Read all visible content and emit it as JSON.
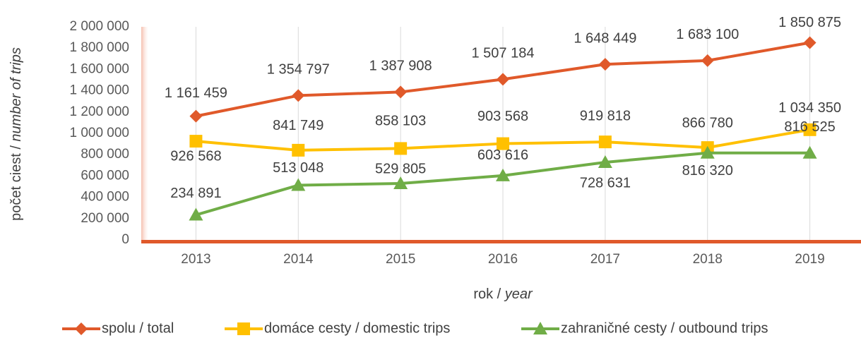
{
  "chart_data": {
    "type": "line",
    "ylabel": [
      "počet ciest / ",
      "number of trips"
    ],
    "xlabel": [
      "rok / ",
      "year"
    ],
    "categories": [
      "2013",
      "2014",
      "2015",
      "2016",
      "2017",
      "2018",
      "2019"
    ],
    "series": [
      {
        "name": "spolu / total",
        "color": "#E0592A",
        "marker": "diamond",
        "values": [
          1161459,
          1354797,
          1387908,
          1507184,
          1648449,
          1683100,
          1850875
        ],
        "value_labels": [
          "1 161 459",
          "1 354 797",
          "1 387 908",
          "1 507 184",
          "1 648 449",
          "1 683 100",
          "1 850 875"
        ]
      },
      {
        "name": "domáce cesty / domestic trips",
        "color": "#FFC000",
        "marker": "square",
        "values": [
          926568,
          841749,
          858103,
          903568,
          919818,
          866780,
          1034350
        ],
        "value_labels": [
          "926 568",
          "841 749",
          "858 103",
          "903 568",
          "919 818",
          "866 780",
          "1 034 350"
        ]
      },
      {
        "name": "zahraničné cesty / outbound trips",
        "color": "#70AD47",
        "marker": "triangle",
        "values": [
          234891,
          513048,
          529805,
          603616,
          728631,
          816320,
          816525
        ],
        "value_labels": [
          "234 891",
          "513 048",
          "529 805",
          "603 616",
          "728 631",
          "816 320",
          "816 525"
        ]
      }
    ],
    "ylim": [
      0,
      2000000
    ],
    "yticks": [
      0,
      {
        "value": 200000,
        "label": "200 000"
      },
      {
        "value": 400000,
        "label": "400 000"
      },
      {
        "value": 600000,
        "label": "600 000"
      },
      {
        "value": 800000,
        "label": "800 000"
      },
      {
        "value": 1000000,
        "label": "1 000 000"
      },
      {
        "value": 1200000,
        "label": "1 200 000"
      },
      {
        "value": 1400000,
        "label": "1 400 000"
      },
      {
        "value": 1600000,
        "label": "1 600 000"
      },
      {
        "value": 1800000,
        "label": "1 800 000"
      },
      {
        "value": 2000000,
        "label": "2 000 000"
      }
    ],
    "grid": true,
    "legend": "bottom"
  }
}
